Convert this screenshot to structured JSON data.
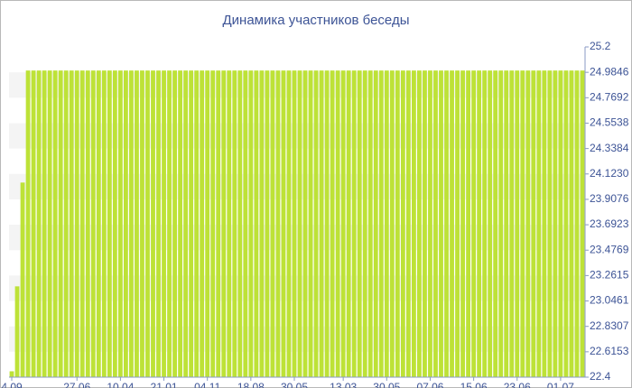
{
  "chart_data": {
    "type": "bar",
    "title": "Динамика участников беседы",
    "categories": [
      "4.09",
      null,
      null,
      null,
      null,
      null,
      null,
      null,
      null,
      null,
      null,
      null,
      "27.06",
      null,
      null,
      null,
      null,
      null,
      null,
      null,
      "10.04",
      null,
      null,
      null,
      null,
      null,
      null,
      null,
      "21.01",
      null,
      null,
      null,
      null,
      null,
      null,
      null,
      "04.11",
      null,
      null,
      null,
      null,
      null,
      null,
      null,
      "18.08",
      null,
      null,
      null,
      null,
      null,
      null,
      null,
      "30.05",
      null,
      null,
      null,
      null,
      null,
      null,
      null,
      null,
      "13.03",
      null,
      null,
      null,
      null,
      null,
      null,
      null,
      "30.05",
      null,
      null,
      null,
      null,
      null,
      null,
      null,
      "07.06",
      null,
      null,
      null,
      null,
      null,
      null,
      null,
      "15.06",
      null,
      null,
      null,
      null,
      null,
      null,
      null,
      "23.06",
      null,
      null,
      null,
      null,
      null,
      null,
      null,
      "01.07",
      null,
      null,
      null,
      null
    ],
    "values": [
      22.45,
      23.17,
      24.05,
      25,
      25,
      25,
      25,
      25,
      25,
      25,
      25,
      25,
      25,
      25,
      25,
      25,
      25,
      25,
      25,
      25,
      25,
      25,
      25,
      25,
      25,
      25,
      25,
      25,
      25,
      25,
      25,
      25,
      25,
      25,
      25,
      25,
      25,
      25,
      25,
      25,
      25,
      25,
      25,
      25,
      25,
      25,
      25,
      25,
      25,
      25,
      25,
      25,
      25,
      25,
      25,
      25,
      25,
      25,
      25,
      25,
      25,
      25,
      25,
      25,
      25,
      25,
      25,
      25,
      25,
      25,
      25,
      25,
      25,
      25,
      25,
      25,
      25,
      25,
      25,
      25,
      25,
      25,
      25,
      25,
      25,
      25,
      25,
      25,
      25,
      25,
      25,
      25,
      25,
      25,
      25,
      25,
      25,
      25,
      25,
      25,
      25,
      25,
      25,
      25,
      25,
      25
    ],
    "color": "#bde237",
    "ylim": [
      22.4,
      25.2
    ],
    "yticks": [
      22.4,
      22.6153,
      22.8307,
      23.0461,
      23.2615,
      23.4769,
      23.6923,
      23.9076,
      {
        "value": 24.123,
        "label": "24.1230"
      },
      24.3384,
      24.5538,
      24.7692,
      24.9846,
      25.2
    ],
    "grid": true
  }
}
